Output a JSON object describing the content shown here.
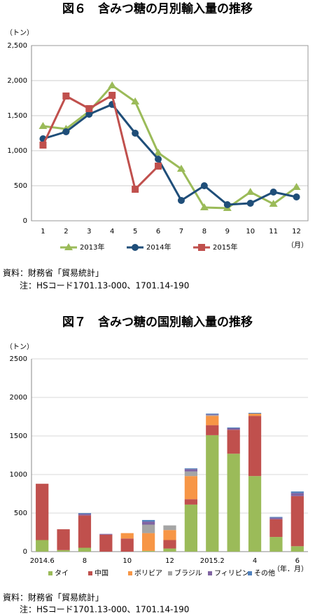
{
  "chart_data": [
    {
      "type": "line",
      "title": "図６　含みつ糖の月別輸入量の推移",
      "y_unit": "（トン）",
      "x_unit": "（月）",
      "categories": [
        "1",
        "2",
        "3",
        "4",
        "5",
        "6",
        "7",
        "8",
        "9",
        "10",
        "11",
        "12"
      ],
      "ylim": [
        0,
        2500
      ],
      "yticks": [
        0,
        500,
        {
          "value": 1000,
          "label": "1,000"
        },
        {
          "value": 1500,
          "label": "1,500"
        },
        {
          "value": 2000,
          "label": "2,000"
        },
        {
          "value": 2500,
          "label": "2,500"
        }
      ],
      "grid": true,
      "legend": "bottom",
      "series": [
        {
          "name": "2013年",
          "color": "#9bbb59",
          "marker": "triangle",
          "values": [
            1350,
            1310,
            1560,
            1930,
            1700,
            970,
            740,
            190,
            180,
            410,
            240,
            480
          ]
        },
        {
          "name": "2014年",
          "color": "#1f4e79",
          "marker": "circle",
          "values": [
            1170,
            1270,
            1520,
            1660,
            1250,
            880,
            290,
            500,
            230,
            250,
            410,
            340
          ]
        },
        {
          "name": "2015年",
          "color": "#c0504d",
          "marker": "square",
          "values": [
            1080,
            1780,
            1600,
            1790,
            450,
            780,
            null,
            null,
            null,
            null,
            null,
            null
          ]
        }
      ],
      "source": "資料：財務省「貿易統計」",
      "note": "注：HSコード1701.13-000、1701.14-190"
    },
    {
      "type": "stacked_bar",
      "title": "図７　含みつ糖の国別輸入量の推移",
      "y_unit": "（トン）",
      "x_unit": "（年．月）",
      "categories": [
        "2014.6",
        null,
        "8",
        null,
        "10",
        null,
        "12",
        null,
        "2015.2",
        null,
        "4",
        null,
        "6"
      ],
      "ylim": [
        0,
        2500
      ],
      "yticks": [
        0,
        500,
        1000,
        1500,
        2000,
        2500
      ],
      "grid": true,
      "legend": "bottom",
      "series": [
        {
          "name": "タイ",
          "color": "#9bbb59",
          "values": [
            150,
            20,
            50,
            0,
            0,
            10,
            40,
            610,
            1510,
            1270,
            980,
            190,
            70
          ]
        },
        {
          "name": "中国",
          "color": "#c0504d",
          "values": [
            730,
            270,
            420,
            220,
            170,
            0,
            110,
            70,
            130,
            310,
            780,
            230,
            650
          ]
        },
        {
          "name": "ボリビア",
          "color": "#f79646",
          "values": [
            0,
            0,
            0,
            0,
            70,
            230,
            130,
            300,
            120,
            0,
            30,
            0,
            0
          ]
        },
        {
          "name": "ブラジル",
          "color": "#a5a5a5",
          "values": [
            0,
            0,
            0,
            0,
            0,
            110,
            60,
            60,
            10,
            0,
            0,
            0,
            0
          ]
        },
        {
          "name": "フィリピン",
          "color": "#8064a2",
          "values": [
            0,
            0,
            20,
            10,
            0,
            40,
            0,
            30,
            10,
            20,
            0,
            20,
            40
          ]
        },
        {
          "name": "その他",
          "color": "#4f81bd",
          "values": [
            0,
            0,
            10,
            0,
            0,
            20,
            0,
            10,
            10,
            10,
            10,
            10,
            20
          ]
        }
      ],
      "source": "資料：財務省「貿易統計」",
      "note": "注：HSコード1701.13-000、1701.14-190"
    }
  ]
}
